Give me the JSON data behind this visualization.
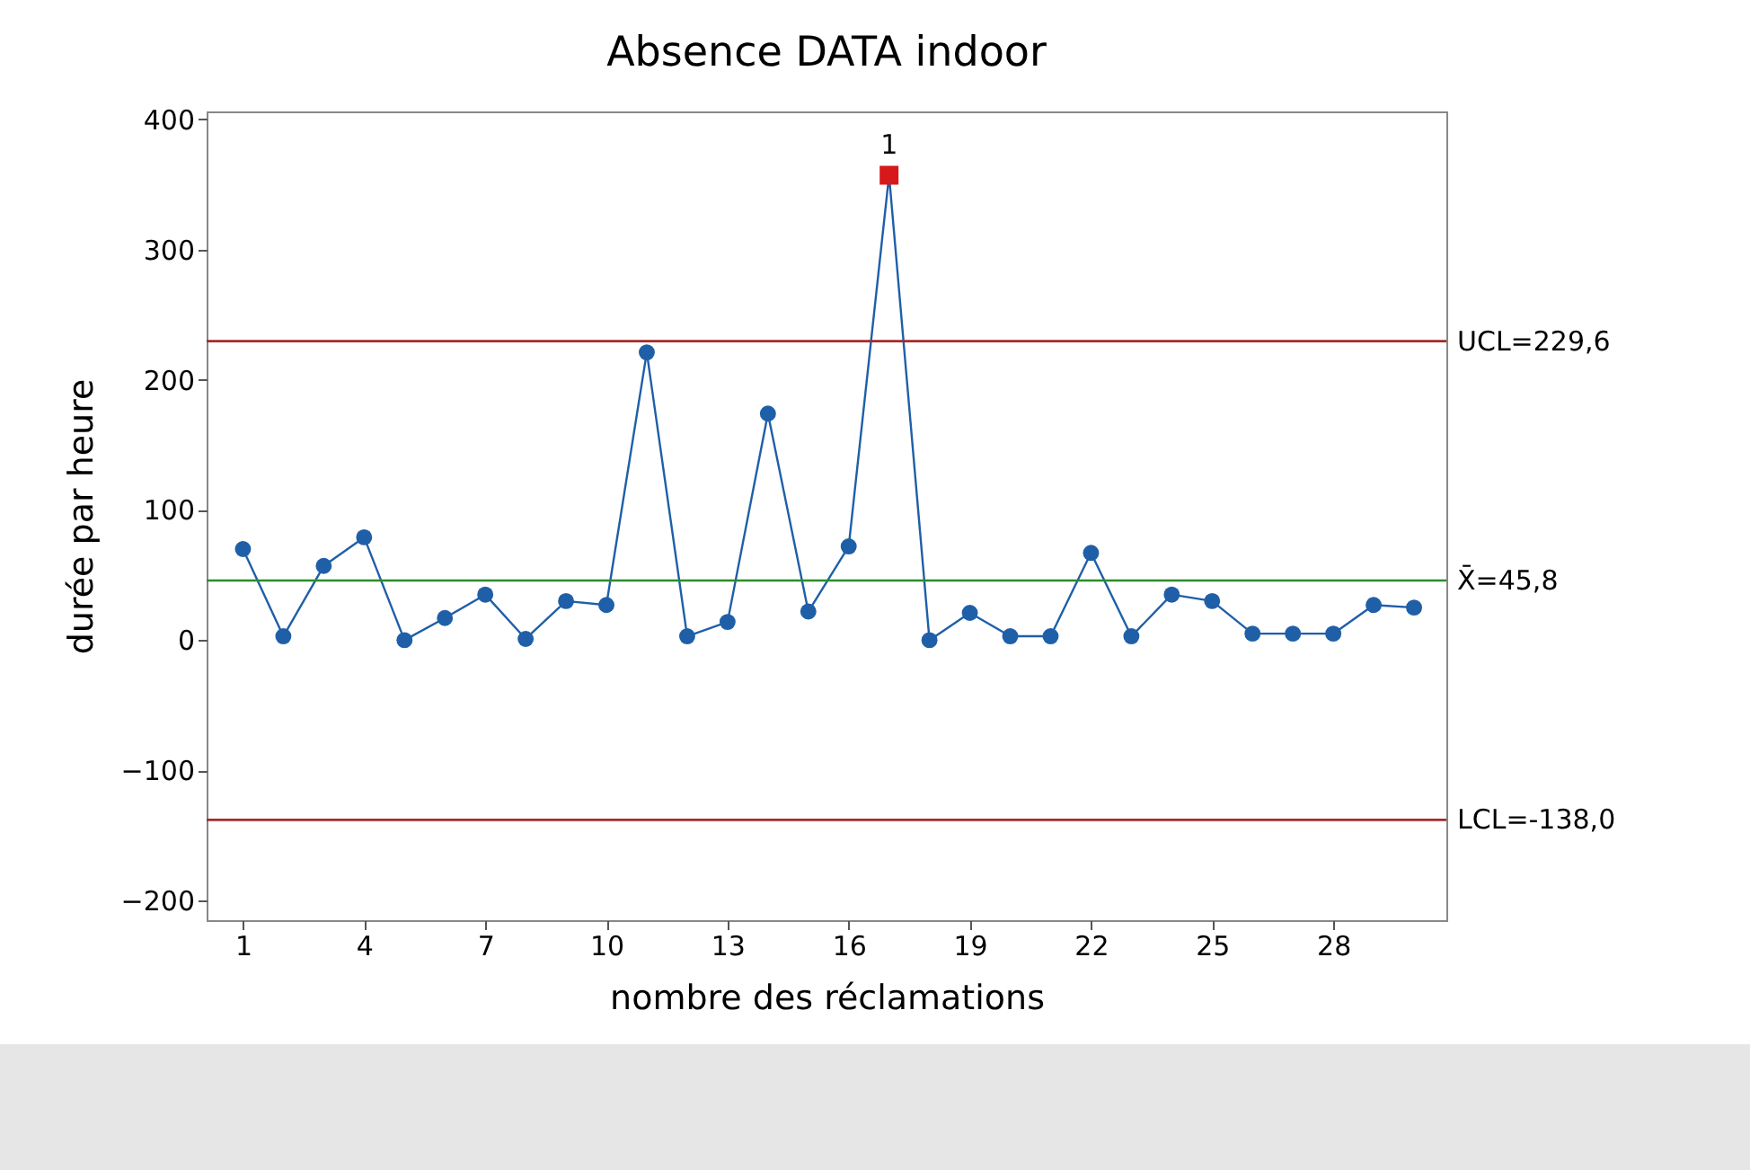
{
  "chart_data": {
    "type": "line",
    "title": "Absence DATA indoor",
    "xlabel": "nombre des réclamations",
    "ylabel": "durée par heure",
    "x": [
      1,
      2,
      3,
      4,
      5,
      6,
      7,
      8,
      9,
      10,
      11,
      12,
      13,
      14,
      15,
      16,
      17,
      18,
      19,
      20,
      21,
      22,
      23,
      24,
      25,
      26,
      27,
      28,
      29,
      30
    ],
    "series": [
      {
        "color": "#1f5fa8",
        "values": [
          70,
          3,
          57,
          79,
          0,
          17,
          35,
          1,
          30,
          27,
          221,
          3,
          14,
          174,
          22,
          72,
          357,
          0,
          21,
          3,
          3,
          67,
          3,
          35,
          30,
          5,
          5,
          5,
          27,
          25
        ]
      },
      {
        "type": "scatter",
        "marker": "square",
        "color": "#d7191c",
        "x": [
          17
        ],
        "values": [
          357
        ]
      }
    ],
    "annotations": [
      {
        "text": "1",
        "x": 17,
        "y": 357
      }
    ],
    "ref_lines": [
      {
        "axis": "y",
        "value": 229.6,
        "label": "UCL=229,6",
        "color": "#a52a2a"
      },
      {
        "axis": "y",
        "value": 45.8,
        "label": "X̄=45,8",
        "color": "#2e8b2e"
      },
      {
        "axis": "y",
        "value": -138.0,
        "label": "LCL=-138,0",
        "color": "#a52a2a"
      }
    ],
    "xlim": [
      0.1,
      30.8
    ],
    "xticks": [
      1,
      4,
      7,
      10,
      13,
      16,
      19,
      22,
      25,
      28
    ],
    "ylim": [
      -215,
      406
    ],
    "yticks": [
      -200,
      -100,
      0,
      100,
      200,
      300,
      400
    ],
    "marker": "circle",
    "grid": false
  }
}
